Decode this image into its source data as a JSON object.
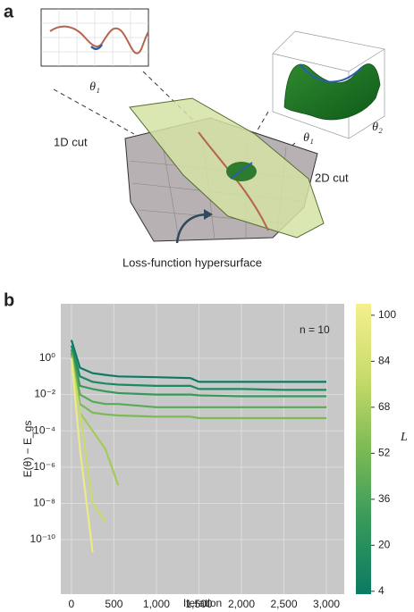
{
  "panel_a": {
    "label": "a",
    "inset_1d_xlabel": "θ₁",
    "inset_2d_xlabel": "θ₁",
    "inset_2d_ylabel": "θ₂",
    "cut_1d": "1D cut",
    "cut_2d": "2D cut",
    "caption": "Loss-function hypersurface"
  },
  "panel_b": {
    "label": "b"
  },
  "chart_data": {
    "type": "line",
    "xlabel": "Iteration",
    "ylabel": "E(θ) − E_gs",
    "annotation": "n = 10",
    "x": [
      0,
      100,
      250,
      400,
      550,
      1000,
      1400,
      1500,
      2000,
      2500,
      3000
    ],
    "series": [
      {
        "color": "#0b7a63",
        "values": [
          10,
          0.3,
          0.15,
          0.12,
          0.1,
          0.09,
          0.08,
          0.05,
          0.05,
          0.05,
          0.05
        ]
      },
      {
        "color": "#1b8a60",
        "values": [
          5,
          0.1,
          0.05,
          0.04,
          0.035,
          0.03,
          0.03,
          0.02,
          0.02,
          0.018,
          0.018
        ]
      },
      {
        "color": "#36995b",
        "values": [
          3,
          0.03,
          0.02,
          0.015,
          0.012,
          0.01,
          0.01,
          0.009,
          0.008,
          0.008,
          0.008
        ]
      },
      {
        "color": "#57aa56",
        "values": [
          2,
          0.01,
          0.004,
          0.003,
          0.003,
          0.002,
          0.002,
          0.002,
          0.002,
          0.002,
          0.002
        ]
      },
      {
        "color": "#7cba55",
        "values": [
          1.5,
          0.003,
          0.001,
          0.0008,
          0.0007,
          0.0006,
          0.0006,
          0.0005,
          0.0005,
          0.0005,
          0.0005
        ]
      },
      {
        "color": "#a3ca5a",
        "values": [
          1.2,
          0.001,
          0.0001,
          1e-05,
          1e-07,
          null,
          null,
          null,
          null,
          null,
          null
        ]
      },
      {
        "color": "#c9dc6a",
        "values": [
          1,
          0.001,
          1e-08,
          1e-09,
          null,
          null,
          null,
          null,
          null,
          null,
          null
        ]
      },
      {
        "color": "#ecea84",
        "values": [
          1,
          1e-05,
          2e-11,
          null,
          null,
          null,
          null,
          null,
          null,
          null,
          null
        ]
      }
    ],
    "xlim": [
      -125,
      3210
    ],
    "ylim": [
      1e-13,
      1000
    ],
    "log_y": true,
    "grid": true,
    "background": "#c8c8c8",
    "xticks": [
      0,
      500,
      {
        "value": 1000,
        "label": "1,000"
      },
      {
        "value": 1500,
        "label": "1,500"
      },
      {
        "value": 2000,
        "label": "2,000"
      },
      {
        "value": 2500,
        "label": "2,500"
      },
      {
        "value": 3000,
        "label": "3,000"
      }
    ],
    "yticks": [
      {
        "value": 1,
        "label": "10⁰"
      },
      {
        "value": 0.01,
        "label": "10⁻²"
      },
      {
        "value": 0.0001,
        "label": "10⁻⁴"
      },
      {
        "value": 1e-06,
        "label": "10⁻⁶"
      },
      {
        "value": 1e-08,
        "label": "10⁻⁸"
      },
      {
        "value": 1e-10,
        "label": "10⁻¹⁰"
      }
    ],
    "colorbar": {
      "label": "L",
      "lim": [
        3,
        104
      ],
      "ticks": [
        4,
        20,
        36,
        52,
        68,
        84,
        100
      ],
      "colors": [
        "#0b7a63",
        "#36995b",
        "#7cba55",
        "#c9dc6a",
        "#f4f08e"
      ]
    }
  }
}
